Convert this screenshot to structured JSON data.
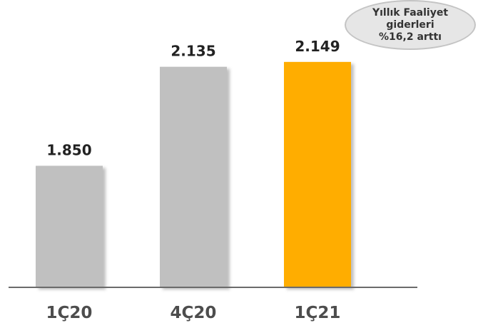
{
  "callout": {
    "text": "Yıllık Faaliyet giderleri %16,2 arttı"
  },
  "chart_data": {
    "type": "bar",
    "title": "",
    "xlabel": "",
    "ylabel": "",
    "categories": [
      "1Ç20",
      "4Ç20",
      "1Ç21"
    ],
    "values": [
      1.85,
      2.135,
      2.149
    ],
    "value_labels": [
      "1.850",
      "2.135",
      "2.149"
    ],
    "bar_colors": [
      "#c0c0c0",
      "#c0c0c0",
      "#ffad00"
    ],
    "ylim": [
      1.5,
      2.2
    ],
    "grid": false,
    "legend": "none"
  }
}
